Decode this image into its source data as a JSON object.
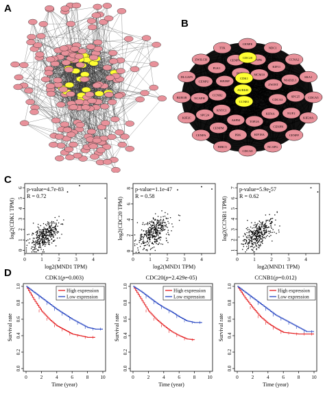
{
  "panels": {
    "a": "A",
    "b": "B",
    "c": "C",
    "d": "D"
  },
  "network_b": {
    "hub_genes": [
      "CDC20",
      "CDK1",
      "AURKB",
      "CCNB1"
    ],
    "genes": [
      "CENPE",
      "NDC1",
      "CCNA2",
      "SKA1",
      "CDCA5",
      "KIF20A",
      "CENPF",
      "NCAPG",
      "CDCA8",
      "BIRC5",
      "CENPA",
      "KIF2C",
      "BUB1B",
      "DLGAP5",
      "ZWILCH",
      "TTK",
      "CENPK",
      "KIF11",
      "MAD2L1",
      "SPC25",
      "NUF2",
      "CENPN",
      "KIF18A",
      "PBK",
      "CENPM",
      "SPC24",
      "NCAPH",
      "CENPU",
      "PLK1",
      "CENPW",
      "MCM10",
      "ZWINT",
      "CDCA3",
      "KIF4A",
      "TOP2A",
      "ASPM",
      "KNTC1",
      "CCNB2",
      "HJURP",
      "BUB1"
    ],
    "colors": {
      "pink": "#E8919A",
      "yellow": "#FFFF33",
      "edge": "#000000"
    }
  },
  "scatter": [
    {
      "pvalue": "p-value=4.7e-83",
      "r": "R = 0.72",
      "ylabel": "log2(CDK1 TPM)",
      "xlabel": "log2(MND1 TPM)",
      "xticks": [
        "0",
        "1",
        "2",
        "3",
        "4"
      ],
      "yticks": [
        "0",
        "1",
        "2",
        "3",
        "4",
        "5",
        "6"
      ]
    },
    {
      "pvalue": "p-value=1.1e-47",
      "r": "R = 0.58",
      "ylabel": "log2(CDC20 TPM)",
      "xlabel": "log2(MND1 TPM)",
      "xticks": [
        "0",
        "1",
        "2",
        "3",
        "4"
      ],
      "yticks": [
        "0",
        "2",
        "4",
        "6",
        "8"
      ]
    },
    {
      "pvalue": "p-value=5.9e-57",
      "r": "R = 0.62",
      "ylabel": "log2(CCNB1 TPM)",
      "xlabel": "log2(MND1 TPM)",
      "xticks": [
        "0",
        "1",
        "2",
        "3",
        "4"
      ],
      "yticks": [
        "1",
        "2",
        "3",
        "4",
        "5",
        "6",
        "7"
      ]
    }
  ],
  "km": [
    {
      "title_gene": "CDK1",
      "title_p": "p",
      "title_val": "=0.003",
      "open": "(",
      "close": ")"
    },
    {
      "title_gene": "CDC20",
      "title_p": "p",
      "title_val": "=2.429e-05",
      "open": "(",
      "close": ")"
    },
    {
      "title_gene": "CCNB1",
      "title_p": "p",
      "title_val": "=0.012",
      "open": "(",
      "close": ")"
    }
  ],
  "km_common": {
    "ylabel": "Survival rate",
    "xlabel": "Time (year)",
    "legend_high": "High expression",
    "legend_low": "Low expression",
    "xticks": [
      "0",
      "2",
      "4",
      "6",
      "8",
      "10"
    ],
    "yticks": [
      "0.0",
      "0.2",
      "0.4",
      "0.6",
      "0.8",
      "1.0"
    ],
    "colors": {
      "high": "#E41A1C",
      "low": "#2040C0"
    }
  },
  "chart_data": [
    {
      "type": "scatter",
      "title": "",
      "xlabel": "log2(MND1 TPM)",
      "ylabel": "log2(CDK1 TPM)",
      "xlim": [
        0,
        4.8
      ],
      "ylim": [
        -0.3,
        6.4
      ],
      "annotation": [
        "p-value=4.7e-83",
        "R = 0.72"
      ],
      "points": "approx. 370 samples; strong positive correlation",
      "outliers": [
        [
          3.2,
          6.2
        ],
        [
          4.7,
          5.0
        ],
        [
          2.5,
          5.6
        ]
      ]
    },
    {
      "type": "scatter",
      "title": "",
      "xlabel": "log2(MND1 TPM)",
      "ylabel": "log2(CDC20 TPM)",
      "xlim": [
        0,
        4.8
      ],
      "ylim": [
        -0.3,
        8.6
      ],
      "annotation": [
        "p-value=1.1e-47",
        "R = 0.58"
      ],
      "outliers": [
        [
          4.0,
          8.2
        ],
        [
          4.6,
          7.9
        ],
        [
          2.6,
          7.8
        ]
      ]
    },
    {
      "type": "scatter",
      "title": "",
      "xlabel": "log2(MND1 TPM)",
      "ylabel": "log2(CCNB1 TPM)",
      "xlim": [
        0,
        4.8
      ],
      "ylim": [
        0.7,
        7.4
      ],
      "annotation": [
        "p-value=5.9e-57",
        "R = 0.62"
      ],
      "outliers": [
        [
          4.7,
          6.6
        ],
        [
          4.3,
          7.0
        ],
        [
          1.9,
          6.6
        ]
      ]
    },
    {
      "type": "line",
      "title": "CDK1(p=0.003)",
      "xlabel": "Time (year)",
      "ylabel": "Survival rate",
      "xlim": [
        0,
        10
      ],
      "ylim": [
        0,
        1
      ],
      "series": [
        {
          "name": "High expression",
          "x": [
            0,
            1,
            2,
            3,
            4,
            5,
            6,
            7,
            8,
            9
          ],
          "y": [
            1.0,
            0.84,
            0.7,
            0.6,
            0.52,
            0.47,
            0.42,
            0.4,
            0.38,
            0.38
          ]
        },
        {
          "name": "Low expression",
          "x": [
            0,
            1,
            2,
            3,
            4,
            5,
            6,
            7,
            8,
            9,
            10
          ],
          "y": [
            1.0,
            0.93,
            0.86,
            0.79,
            0.72,
            0.66,
            0.6,
            0.55,
            0.5,
            0.48,
            0.48
          ]
        }
      ]
    },
    {
      "type": "line",
      "title": "CDC20(p=2.429e-05)",
      "xlabel": "Time (year)",
      "ylabel": "Survival rate",
      "xlim": [
        0,
        10
      ],
      "ylim": [
        0,
        1
      ],
      "series": [
        {
          "name": "High expression",
          "x": [
            0,
            1,
            2,
            3,
            4,
            5,
            6,
            7,
            8
          ],
          "y": [
            1.0,
            0.85,
            0.7,
            0.6,
            0.52,
            0.45,
            0.4,
            0.36,
            0.35
          ]
        },
        {
          "name": "Low expression",
          "x": [
            0,
            1,
            2,
            3,
            4,
            5,
            6,
            7,
            8,
            9
          ],
          "y": [
            1.0,
            0.94,
            0.87,
            0.8,
            0.74,
            0.69,
            0.63,
            0.58,
            0.56,
            0.56
          ]
        }
      ]
    },
    {
      "type": "line",
      "title": "CCNB1(p=0.012)",
      "xlabel": "Time (year)",
      "ylabel": "Survival rate",
      "xlim": [
        0,
        10
      ],
      "ylim": [
        0,
        1
      ],
      "series": [
        {
          "name": "High expression",
          "x": [
            0,
            1,
            2,
            3,
            4,
            5,
            6,
            7,
            8,
            9,
            10
          ],
          "y": [
            1.0,
            0.86,
            0.74,
            0.63,
            0.55,
            0.49,
            0.44,
            0.43,
            0.42,
            0.42,
            0.42
          ]
        },
        {
          "name": "Low expression",
          "x": [
            0,
            1,
            2,
            3,
            4,
            5,
            6,
            7,
            8,
            9,
            10
          ],
          "y": [
            1.0,
            0.93,
            0.86,
            0.79,
            0.72,
            0.65,
            0.6,
            0.55,
            0.5,
            0.45,
            0.45
          ]
        }
      ]
    }
  ]
}
